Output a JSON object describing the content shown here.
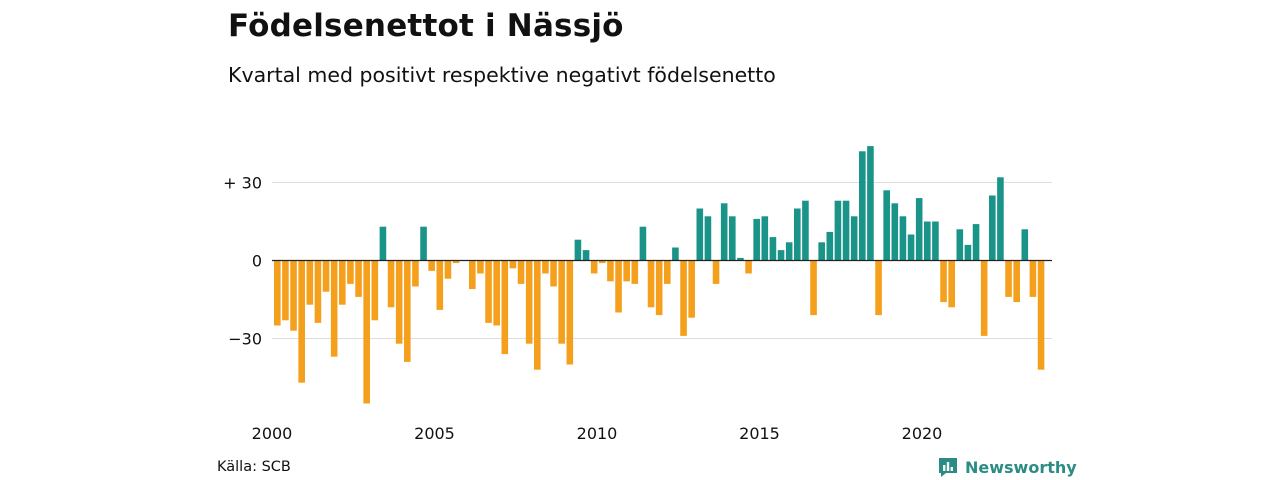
{
  "title": "Födelsenettot i Nässjö",
  "subtitle": "Kvartal med positivt respektive negativt födelsenetto",
  "source": "Källa: SCB",
  "brand": {
    "name": "Newsworthy",
    "icon": "bar-chart-speech-icon"
  },
  "colors": {
    "positive": "#1a9488",
    "negative": "#f5a01d",
    "gridline": "#dddddd",
    "zeroline": "#222222"
  },
  "chart_data": {
    "type": "bar",
    "x_start": 2000,
    "x_end": 2024,
    "xticks": [
      "2000",
      "2005",
      "2010",
      "2015",
      "2020"
    ],
    "yticks": [
      {
        "value": 30,
        "label": "+ 30"
      },
      {
        "value": 0,
        "label": "0"
      },
      {
        "value": -30,
        "label": "−30"
      }
    ],
    "ylim": [
      -55,
      45
    ],
    "values": [
      -25,
      -23,
      -27,
      -47,
      -17,
      -24,
      -12,
      -37,
      -17,
      -9,
      -14,
      -55,
      -23,
      13,
      -18,
      -32,
      -39,
      -10,
      13,
      -4,
      -19,
      -7,
      -1,
      0,
      -11,
      -5,
      -24,
      -25,
      -36,
      -3,
      -9,
      -32,
      -42,
      -5,
      -10,
      -32,
      -40,
      8,
      4,
      -5,
      -1,
      -8,
      -20,
      -8,
      -9,
      13,
      -18,
      -21,
      -9,
      5,
      -29,
      -22,
      20,
      17,
      -9,
      22,
      17,
      1,
      -5,
      16,
      17,
      9,
      4,
      7,
      20,
      23,
      -21,
      7,
      11,
      23,
      23,
      17,
      42,
      44,
      -21,
      27,
      22,
      17,
      10,
      24,
      15,
      15,
      -16,
      -18,
      12,
      6,
      14,
      -29,
      25,
      32,
      -14,
      -16,
      12,
      -14,
      -42
    ]
  }
}
